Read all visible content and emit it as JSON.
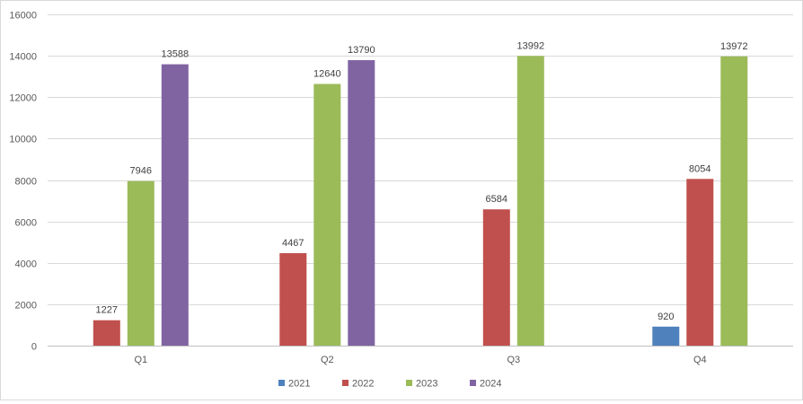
{
  "chart_data": {
    "type": "bar",
    "title": "",
    "xlabel": "",
    "ylabel": "",
    "categories": [
      "Q1",
      "Q2",
      "Q3",
      "Q4"
    ],
    "ylim": [
      0,
      16000
    ],
    "yticks": [
      0,
      2000,
      4000,
      6000,
      8000,
      10000,
      12000,
      14000,
      16000
    ],
    "grid": true,
    "legend_position": "bottom",
    "series": [
      {
        "name": "2021",
        "color": "#4f81bd",
        "values": [
          null,
          null,
          null,
          920
        ]
      },
      {
        "name": "2022",
        "color": "#c0504d",
        "values": [
          1227,
          4467,
          6584,
          8054
        ]
      },
      {
        "name": "2023",
        "color": "#9bbb59",
        "values": [
          7946,
          12640,
          13992,
          13972
        ]
      },
      {
        "name": "2024",
        "color": "#8064a2",
        "values": [
          13588,
          13790,
          null,
          null
        ]
      }
    ]
  }
}
